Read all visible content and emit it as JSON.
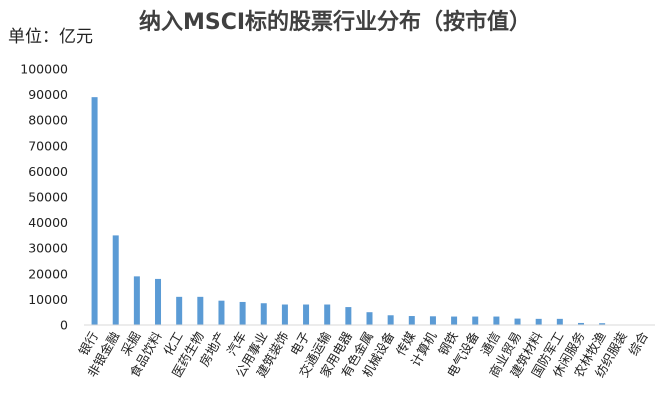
{
  "chart_data": {
    "type": "bar",
    "title": "纳入MSCI标的股票行业分布（按市值）",
    "ylabel": "单位：亿元",
    "xlabel": "",
    "ylim": [
      0,
      100000
    ],
    "yticks": [
      0,
      10000,
      20000,
      30000,
      40000,
      50000,
      60000,
      70000,
      80000,
      90000,
      100000
    ],
    "grid": false,
    "colors": {
      "bar": "#5b9bd5"
    },
    "categories": [
      "银行",
      "非银金融",
      "采掘",
      "食品饮料",
      "化工",
      "医药生物",
      "房地产",
      "汽车",
      "公用事业",
      "建筑装饰",
      "电子",
      "交通运输",
      "家用电器",
      "有色金属",
      "机械设备",
      "传媒",
      "计算机",
      "钢铁",
      "电气设备",
      "通信",
      "商业贸易",
      "建筑材料",
      "国防军工",
      "休闲服务",
      "农林牧渔",
      "纺织服装",
      "综合"
    ],
    "values": [
      89000,
      35000,
      19000,
      18000,
      11000,
      11000,
      9500,
      9000,
      8500,
      8000,
      8000,
      8000,
      7000,
      5000,
      3800,
      3500,
      3400,
      3300,
      3300,
      3300,
      2500,
      2400,
      2400,
      800,
      700,
      100,
      0
    ]
  }
}
